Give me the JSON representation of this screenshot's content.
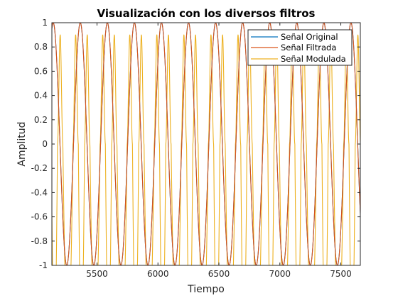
{
  "chart_data": {
    "type": "line",
    "title": "Visualización con los diversos filtros",
    "xlabel": "Tiempo",
    "ylabel": "Amplitud",
    "xlim": [
      5130,
      7660
    ],
    "ylim": [
      -1,
      1
    ],
    "x_ticks": [
      5500,
      6000,
      6500,
      7000,
      7500
    ],
    "y_ticks": [
      -1,
      -0.8,
      -0.6,
      -0.4,
      -0.2,
      0,
      0.2,
      0.4,
      0.6,
      0.8,
      1
    ],
    "grid": false,
    "legend_position": "top-right",
    "series": [
      {
        "name": "Señal Original",
        "color": "#0072BD",
        "x_range": [
          5130,
          7660
        ],
        "period": 222,
        "peak_at": 5585,
        "amplitude": 1,
        "shape": "cosine"
      },
      {
        "name": "Señal Filtrada",
        "color": "#D95319",
        "x_range": [
          5130,
          7660
        ],
        "period": 222,
        "peak_at": 5585,
        "amplitude": 1,
        "shape": "cosine"
      },
      {
        "name": "Señal Modulada",
        "color": "#EDB120",
        "x_range": [
          5130,
          7660
        ],
        "period": 222,
        "peaks_at": [
          5325,
          5420
        ],
        "peak_value": 0.9,
        "trough_value": -1,
        "plateau_value": 0,
        "shape": "clipped double-pulse"
      }
    ]
  }
}
